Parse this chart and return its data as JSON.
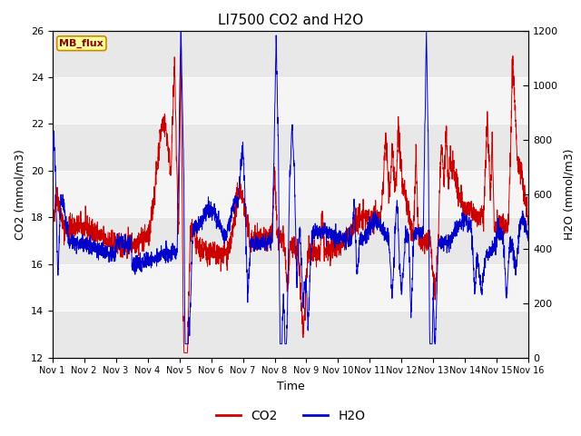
{
  "title": "LI7500 CO2 and H2O",
  "xlabel": "Time",
  "ylabel_left": "CO2 (mmol/m3)",
  "ylabel_right": "H2O (mmol/m3)",
  "co2_color": "#CC0000",
  "h2o_color": "#0000CC",
  "ylim_left": [
    12,
    26
  ],
  "ylim_right": [
    0,
    1200
  ],
  "yticks_left": [
    12,
    14,
    16,
    18,
    20,
    22,
    24,
    26
  ],
  "yticks_right": [
    0,
    200,
    400,
    600,
    800,
    1000,
    1200
  ],
  "xtick_labels": [
    "Nov 1",
    "Nov 2",
    "Nov 3",
    "Nov 4",
    "Nov 5",
    "Nov 6",
    "Nov 7",
    "Nov 8",
    "Nov 9",
    "Nov 10",
    "Nov 11",
    "Nov 12",
    "Nov 13",
    "Nov 14",
    "Nov 15",
    "Nov 16"
  ],
  "plot_bg_color": "#ffffff",
  "band_color_dark": "#e8e8e8",
  "band_color_light": "#f5f5f5",
  "annotation_text": "MB_flux",
  "annotation_bg": "#ffff99",
  "annotation_border": "#cc8800",
  "legend_entries": [
    "CO2",
    "H2O"
  ],
  "n_points": 3000
}
